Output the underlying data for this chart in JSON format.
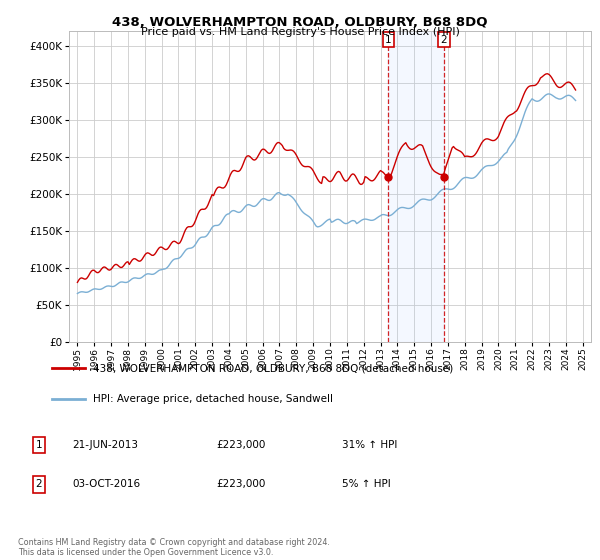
{
  "title": "438, WOLVERHAMPTON ROAD, OLDBURY, B68 8DQ",
  "subtitle": "Price paid vs. HM Land Registry's House Price Index (HPI)",
  "footer": "Contains HM Land Registry data © Crown copyright and database right 2024.\nThis data is licensed under the Open Government Licence v3.0.",
  "legend_line1": "438, WOLVERHAMPTON ROAD, OLDBURY, B68 8DQ (detached house)",
  "legend_line2": "HPI: Average price, detached house, Sandwell",
  "transactions": [
    {
      "label": "1",
      "date": "21-JUN-2013",
      "year": 2013.47,
      "price": 223000,
      "pct": "31% ↑ HPI"
    },
    {
      "label": "2",
      "date": "03-OCT-2016",
      "year": 2016.75,
      "price": 223000,
      "pct": "5% ↑ HPI"
    }
  ],
  "red_line_color": "#cc0000",
  "blue_line_color": "#7bafd4",
  "transaction_color": "#cc0000",
  "grid_color": "#cccccc",
  "background_color": "#ffffff",
  "ylim": [
    0,
    420000
  ],
  "xlim": [
    1994.5,
    2025.5
  ],
  "yticks": [
    0,
    50000,
    100000,
    150000,
    200000,
    250000,
    300000,
    350000,
    400000
  ],
  "xticks": [
    1995,
    1996,
    1997,
    1998,
    1999,
    2000,
    2001,
    2002,
    2003,
    2004,
    2005,
    2006,
    2007,
    2008,
    2009,
    2010,
    2011,
    2012,
    2013,
    2014,
    2015,
    2016,
    2017,
    2018,
    2019,
    2020,
    2021,
    2022,
    2023,
    2024,
    2025
  ]
}
